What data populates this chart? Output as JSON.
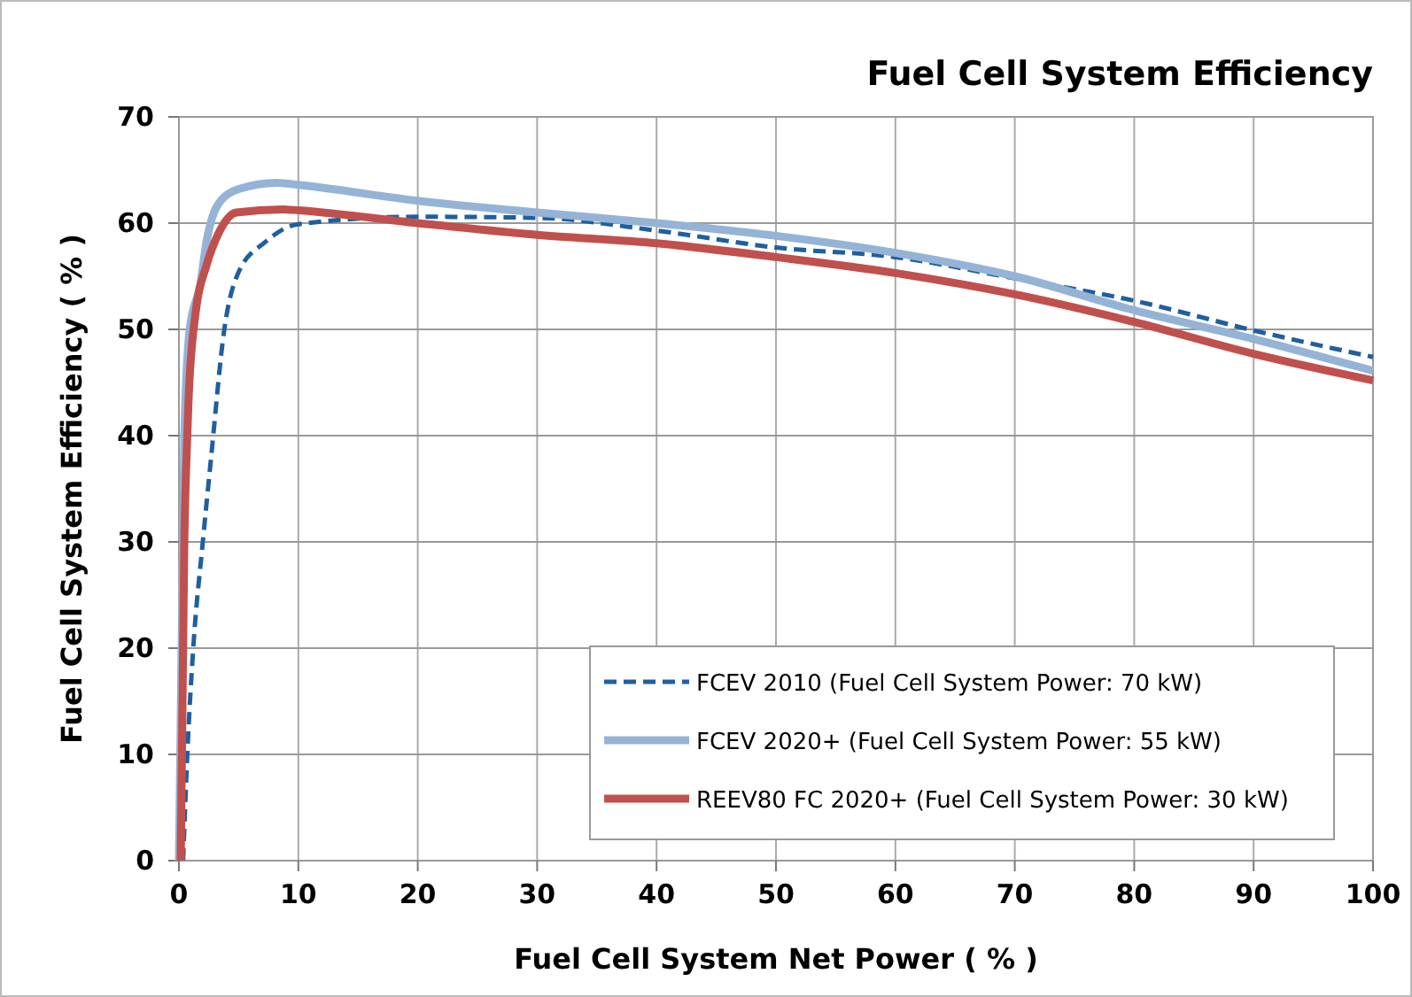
{
  "chart_data": {
    "type": "line",
    "title": "Fuel Cell System Efficiency",
    "xlabel": "Fuel Cell System  Net Power ( % )",
    "ylabel": "Fuel Cell System Efficiency ( % )",
    "xlim": [
      0,
      100
    ],
    "ylim": [
      0,
      70
    ],
    "xticks": [
      0,
      10,
      20,
      30,
      40,
      50,
      60,
      70,
      80,
      90,
      100
    ],
    "yticks": [
      0,
      10,
      20,
      30,
      40,
      50,
      60,
      70
    ],
    "grid": true,
    "legend": "bottom right",
    "marker": "none",
    "series": [
      {
        "name": "FCEV 2010 (Fuel Cell System Power: 70 kW)",
        "color": "#1f5fa0",
        "line_style": "dashed",
        "x": [
          0.35,
          0.7,
          1.2,
          2.0,
          2.7,
          3.8,
          5,
          7.2,
          10,
          20,
          30,
          40,
          50,
          60,
          70,
          80,
          90,
          100
        ],
        "values": [
          0,
          10,
          20,
          30,
          38,
          50,
          55.4,
          58.2,
          59.9,
          60.6,
          60.5,
          59.3,
          57.7,
          56.8,
          54.8,
          52.7,
          49.9,
          47.4
        ]
      },
      {
        "name": "FCEV 2020+ (Fuel Cell System Power: 55 kW)",
        "color": "#95b3d7",
        "line_style": "solid",
        "x": [
          0,
          0.45,
          0.9,
          1.8,
          2.3,
          3.3,
          5,
          8.2,
          10,
          20,
          30,
          40,
          50,
          60,
          70,
          80,
          90,
          100
        ],
        "values": [
          0,
          40,
          50,
          54.3,
          58.2,
          61.8,
          63.2,
          63.8,
          63.6,
          62.1,
          61,
          60,
          58.8,
          57.2,
          55,
          51.8,
          49.1,
          46.1
        ]
      },
      {
        "name": "REEV80 FC 2020+ (Fuel Cell System Power: 30 kW)",
        "color": "#c0504d",
        "line_style": "solid",
        "x": [
          0.15,
          0.45,
          0.7,
          0.8,
          1.4,
          2.3,
          3.3,
          4.8,
          8.7,
          10,
          20,
          30,
          40,
          50,
          60,
          70,
          80,
          90,
          100
        ],
        "values": [
          0,
          30,
          40,
          43.2,
          51.6,
          56,
          59,
          61,
          61.3,
          61.2,
          60,
          58.9,
          58.1,
          56.8,
          55.3,
          53.3,
          50.7,
          47.7,
          45.2
        ]
      }
    ]
  }
}
